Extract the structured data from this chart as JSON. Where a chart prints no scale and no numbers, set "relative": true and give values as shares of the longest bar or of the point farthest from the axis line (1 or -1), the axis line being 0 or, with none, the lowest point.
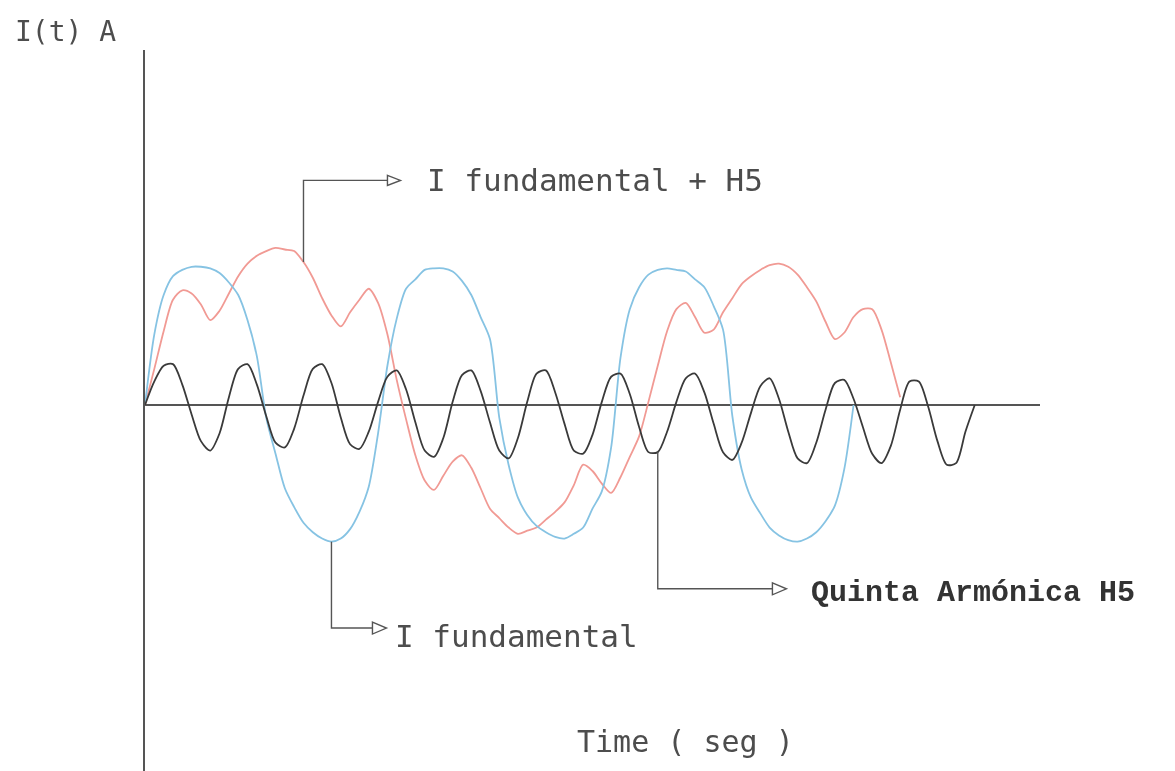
{
  "chart_data": {
    "type": "line",
    "relative": true,
    "annotations": [
      "I(t) A",
      "Time ( seg )"
    ],
    "categories": [
      null,
      null,
      null,
      null,
      null,
      null,
      null,
      null,
      null,
      null,
      null,
      null,
      null,
      null,
      null,
      null,
      null,
      null,
      null,
      null,
      null,
      null,
      null,
      null,
      null,
      null,
      null,
      null,
      null,
      null,
      null,
      null,
      null,
      null,
      null,
      null,
      null,
      null,
      null,
      null,
      null,
      null,
      null,
      null,
      null,
      null,
      null,
      null,
      null,
      null,
      null,
      null,
      null,
      null,
      null,
      null,
      null,
      null,
      null,
      null,
      null,
      null,
      null,
      null,
      null,
      null,
      null,
      null,
      null,
      null,
      null,
      null,
      null,
      null,
      null,
      null,
      null,
      null,
      null,
      null,
      null,
      null,
      null,
      null,
      null,
      null,
      null,
      null,
      null,
      null,
      null,
      null,
      null,
      null,
      null,
      null,
      null
    ],
    "series": [
      {
        "name": "I fundamental + H5",
        "color": "#f19a94",
        "values": [
          0,
          0.23,
          0.47,
          0.67,
          0.73,
          0.71,
          0.64,
          0.54,
          0.6,
          0.71,
          0.82,
          0.9,
          0.95,
          0.98,
          1,
          0.99,
          0.98,
          0.91,
          0.81,
          0.68,
          0.57,
          0.5,
          0.59,
          0.67,
          0.74,
          0.65,
          0.45,
          0.16,
          -0.09,
          -0.32,
          -0.48,
          -0.54,
          -0.45,
          -0.36,
          -0.32,
          -0.4,
          -0.53,
          -0.66,
          -0.72,
          -0.78,
          -0.82,
          -0.8,
          -0.78,
          -0.73,
          -0.68,
          -0.62,
          -0.51,
          -0.38,
          -0.42,
          -0.5,
          -0.56,
          -0.46,
          -0.33,
          -0.2,
          0.02,
          0.25,
          0.47,
          0.61,
          0.65,
          0.56,
          0.46,
          0.48,
          0.59,
          0.68,
          0.77,
          0.82,
          0.86,
          0.89,
          0.9,
          0.88,
          0.83,
          0.75,
          0.66,
          0.53,
          0.42,
          0.46,
          0.56,
          0.61,
          0.61,
          0.48,
          0.27,
          0.05,
          null,
          null,
          null,
          null,
          null,
          null,
          null,
          null,
          null,
          null,
          null,
          null,
          null,
          null,
          null
        ]
      },
      {
        "name": "I fundamental",
        "color": "#86c3e3",
        "values": [
          0,
          0.45,
          0.7,
          0.82,
          0.86,
          0.88,
          0.88,
          0.87,
          0.84,
          0.78,
          0.7,
          0.54,
          0.31,
          -0.08,
          -0.31,
          -0.53,
          -0.65,
          -0.75,
          -0.81,
          -0.85,
          -0.87,
          -0.85,
          -0.79,
          -0.68,
          -0.52,
          -0.18,
          0.25,
          0.55,
          0.74,
          0.8,
          0.86,
          0.87,
          0.87,
          0.85,
          0.79,
          0.7,
          0.56,
          0.42,
          -0.08,
          -0.38,
          -0.59,
          -0.7,
          -0.77,
          -0.81,
          -0.84,
          -0.85,
          -0.82,
          -0.78,
          -0.66,
          -0.55,
          -0.27,
          0.3,
          0.61,
          0.75,
          0.83,
          0.86,
          0.87,
          0.86,
          0.85,
          0.8,
          0.75,
          0.63,
          0.48,
          -0.07,
          -0.41,
          -0.59,
          -0.69,
          -0.78,
          -0.83,
          -0.86,
          -0.87,
          -0.85,
          -0.81,
          -0.74,
          -0.64,
          -0.41,
          0,
          null,
          null,
          null,
          null,
          null,
          null,
          null,
          null,
          null,
          null,
          null,
          null,
          null,
          null,
          null,
          null,
          null,
          null,
          null,
          null
        ]
      },
      {
        "name": "Quinta Armónica H5",
        "color": "#3a3a3a",
        "values": [
          0,
          0.15,
          0.25,
          0.26,
          0.13,
          -0.06,
          -0.23,
          -0.29,
          -0.18,
          0.05,
          0.23,
          0.26,
          0.13,
          -0.07,
          -0.24,
          -0.27,
          -0.15,
          0.06,
          0.23,
          0.26,
          0.14,
          -0.08,
          -0.25,
          -0.28,
          -0.17,
          0.02,
          0.18,
          0.22,
          0.1,
          -0.11,
          -0.29,
          -0.33,
          -0.21,
          0.02,
          0.19,
          0.22,
          0.09,
          -0.11,
          -0.29,
          -0.34,
          -0.21,
          0.02,
          0.2,
          0.22,
          0.08,
          -0.12,
          -0.29,
          -0.31,
          -0.19,
          0.02,
          0.18,
          0.2,
          0.07,
          -0.14,
          -0.3,
          -0.3,
          -0.17,
          0.02,
          0.17,
          0.2,
          0.08,
          -0.12,
          -0.3,
          -0.35,
          -0.24,
          -0.05,
          0.12,
          0.17,
          0.04,
          -0.17,
          -0.34,
          -0.37,
          -0.24,
          -0.03,
          0.14,
          0.16,
          0.04,
          -0.14,
          -0.31,
          -0.37,
          -0.26,
          -0.03,
          0.15,
          0.15,
          -0.01,
          -0.23,
          -0.38,
          -0.37,
          -0.17,
          0,
          null,
          null,
          null,
          null,
          null,
          null,
          null
        ]
      }
    ]
  }
}
